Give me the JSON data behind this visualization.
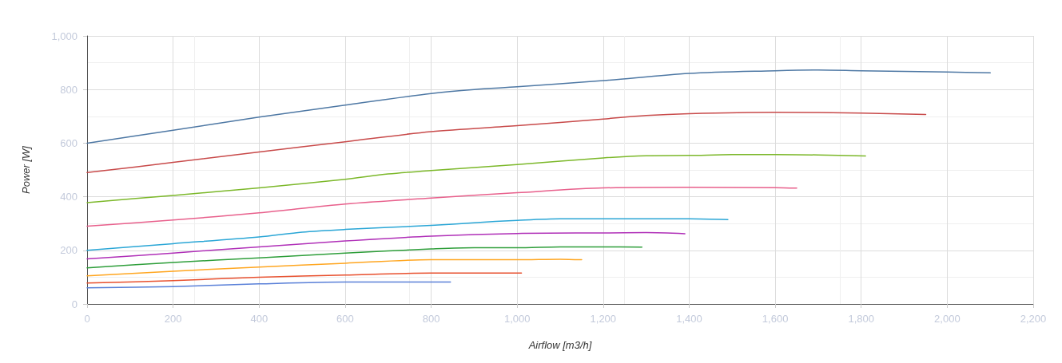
{
  "chart_data": {
    "type": "line",
    "xlabel": "Airflow [m3/h]",
    "ylabel": "Power [W]",
    "xlim": [
      0,
      2200
    ],
    "xticks": [
      0,
      200,
      400,
      600,
      800,
      {
        "value": 1000,
        "label": "1,000"
      },
      {
        "value": 1200,
        "label": "1,200"
      },
      {
        "value": 1400,
        "label": "1,400"
      },
      {
        "value": 1600,
        "label": "1,600"
      },
      {
        "value": 1800,
        "label": "1,800"
      },
      {
        "value": 2000,
        "label": "2,000"
      },
      {
        "value": 2200,
        "label": "2,200"
      }
    ],
    "ylim": [
      0,
      1000
    ],
    "yticks": [
      0,
      200,
      400,
      600,
      800,
      {
        "value": 1000,
        "label": "1,000"
      }
    ],
    "grid": true,
    "marker": "none",
    "line_style": "solid",
    "series": [
      {
        "color": "#4e78a4",
        "x": [
          0,
          200,
          400,
          600,
          800,
          900,
          1000,
          1200,
          1400,
          1600,
          1700,
          1800,
          2000,
          2100
        ],
        "values": [
          600,
          648,
          697,
          742,
          785,
          800,
          810,
          833,
          860,
          870,
          873,
          870,
          865,
          862
        ]
      },
      {
        "color": "#c84a4a",
        "x": [
          0,
          200,
          400,
          600,
          800,
          1000,
          1200,
          1300,
          1400,
          1600,
          1800,
          1950
        ],
        "values": [
          490,
          528,
          567,
          605,
          643,
          665,
          690,
          703,
          710,
          715,
          712,
          707
        ]
      },
      {
        "color": "#7cb82a",
        "x": [
          0,
          200,
          400,
          600,
          700,
          800,
          1000,
          1200,
          1300,
          1400,
          1500,
          1600,
          1700,
          1810
        ],
        "values": [
          378,
          405,
          433,
          465,
          485,
          498,
          520,
          545,
          553,
          554,
          557,
          557,
          556,
          552
        ]
      },
      {
        "color": "#e8608c",
        "x": [
          0,
          200,
          400,
          600,
          800,
          1000,
          1200,
          1400,
          1600,
          1650
        ],
        "values": [
          290,
          313,
          340,
          373,
          395,
          415,
          433,
          435,
          434,
          432
        ]
      },
      {
        "color": "#2aa6d6",
        "x": [
          0,
          200,
          400,
          500,
          600,
          800,
          900,
          1000,
          1100,
          1200,
          1400,
          1490
        ],
        "values": [
          200,
          225,
          250,
          268,
          278,
          293,
          303,
          312,
          318,
          318,
          318,
          315
        ]
      },
      {
        "color": "#b030b8",
        "x": [
          0,
          200,
          400,
          600,
          800,
          1000,
          1200,
          1300,
          1390
        ],
        "values": [
          168,
          190,
          213,
          235,
          253,
          263,
          265,
          266,
          262
        ]
      },
      {
        "color": "#2e9e3a",
        "x": [
          0,
          200,
          400,
          600,
          800,
          900,
          1000,
          1100,
          1200,
          1290
        ],
        "values": [
          135,
          155,
          172,
          190,
          205,
          210,
          210,
          213,
          213,
          212
        ]
      },
      {
        "color": "#ffa620",
        "x": [
          0,
          200,
          400,
          600,
          800,
          1000,
          1100,
          1150
        ],
        "values": [
          105,
          122,
          138,
          152,
          165,
          165,
          167,
          165
        ]
      },
      {
        "color": "#e8502e",
        "x": [
          0,
          200,
          400,
          600,
          800,
          1010
        ],
        "values": [
          78,
          87,
          100,
          108,
          115,
          115
        ]
      },
      {
        "color": "#5a80d8",
        "x": [
          0,
          200,
          400,
          600,
          845
        ],
        "values": [
          60,
          65,
          75,
          82,
          82
        ]
      }
    ]
  }
}
